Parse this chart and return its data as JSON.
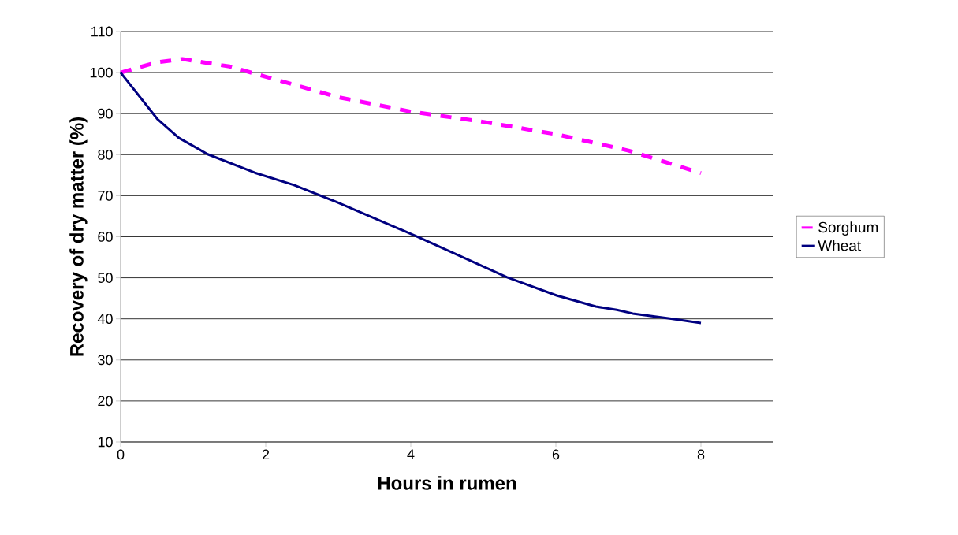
{
  "chart_data": {
    "type": "line",
    "xlabel": "Hours in rumen",
    "ylabel": "Recovery of dry matter (%)",
    "series": [
      {
        "name": "Sorghum",
        "color": "#ff00ff",
        "line_style": "dashed",
        "x": [
          0,
          0.5,
          0.85,
          1.5,
          2,
          2.5,
          3,
          4,
          5,
          6,
          7,
          8
        ],
        "values": [
          100,
          102.5,
          103.3,
          101.5,
          99,
          96.5,
          94,
          90.5,
          88,
          85,
          81,
          75.5
        ]
      },
      {
        "name": "Wheat",
        "color": "#000080",
        "line_style": "solid",
        "x": [
          0,
          0.51,
          0.8,
          1.2,
          1.85,
          2.39,
          2.97,
          4.12,
          5.32,
          6.01,
          6.55,
          6.84,
          7.06,
          7.57,
          8
        ],
        "values": [
          100,
          88.6,
          84.1,
          80.1,
          75.6,
          72.6,
          68.5,
          59.8,
          50.2,
          45.7,
          43,
          42.2,
          41.3,
          40.1,
          39
        ]
      }
    ],
    "xlim": [
      0,
      9
    ],
    "xticks": [
      0,
      2,
      4,
      6,
      8
    ],
    "ylim": [
      10,
      110
    ],
    "yticks": [
      10,
      20,
      30,
      40,
      50,
      60,
      70,
      80,
      90,
      100,
      110
    ],
    "grid": "y",
    "legend": "right",
    "marker": "none"
  }
}
